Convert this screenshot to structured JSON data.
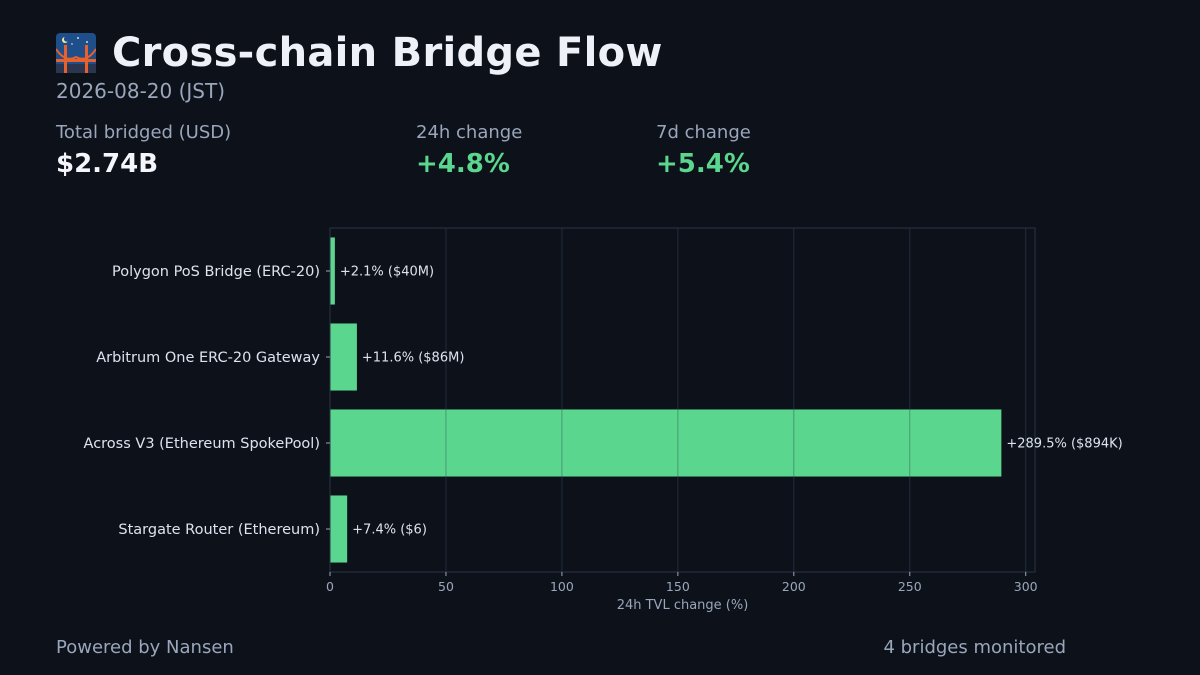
{
  "header": {
    "title": "Cross-chain Bridge Flow",
    "date": "2026-08-20 (JST)",
    "icon": "bridge-icon"
  },
  "stats": {
    "total": {
      "label": "Total bridged (USD)",
      "value": "$2.74B"
    },
    "change_24h": {
      "label": "24h change",
      "value": "+4.8%"
    },
    "change_7d": {
      "label": "7d change",
      "value": "+5.4%"
    }
  },
  "colors": {
    "background": "#0d111a",
    "bar": "#5bd68e",
    "positive": "#5bd68e",
    "muted": "#9aa6bb"
  },
  "chart_data": {
    "type": "bar",
    "orientation": "horizontal",
    "categories": [
      "Polygon PoS Bridge (ERC-20)",
      "Arbitrum One ERC-20 Gateway",
      "Across V3 (Ethereum SpokePool)",
      "Stargate Router (Ethereum)"
    ],
    "values": [
      2.1,
      11.6,
      289.5,
      7.4
    ],
    "data_labels": [
      "+2.1%  ($40M)",
      "+11.6%  ($86M)",
      "+289.5%  ($894K)",
      "+7.4%  ($6)"
    ],
    "xlabel": "24h TVL change (%)",
    "xlim": [
      0,
      304
    ],
    "xticks": [
      0,
      50,
      100,
      150,
      200,
      250,
      300
    ],
    "grid": true
  },
  "footer": {
    "left": "Powered by Nansen",
    "right": "4 bridges monitored"
  }
}
